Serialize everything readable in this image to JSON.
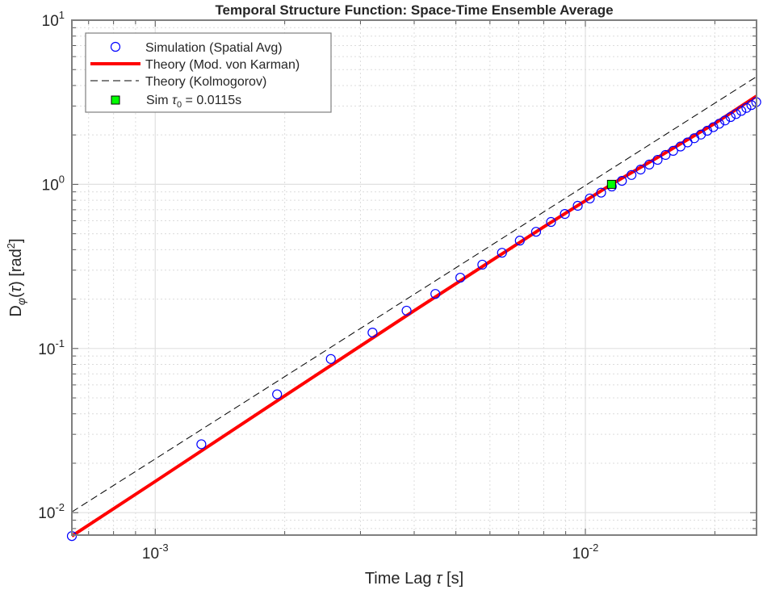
{
  "chart_data": {
    "type": "line",
    "title": "Temporal Structure Function: Space-Time Ensemble Average",
    "xlabel": "Time Lag τ [s]",
    "ylabel": "D_φ(τ) [rad²]",
    "xscale": "log",
    "yscale": "log",
    "xlim": [
      0.00064,
      0.025
    ],
    "ylim": [
      0.0073,
      10
    ],
    "grid": true,
    "minor_grid": true,
    "legend_position": "top-left",
    "x_ticks": [
      {
        "value": 0.001,
        "base": "10",
        "exp": "-3"
      },
      {
        "value": 0.01,
        "base": "10",
        "exp": "-2"
      }
    ],
    "y_ticks": [
      {
        "value": 10,
        "base": "10",
        "exp": "1"
      },
      {
        "value": 1,
        "base": "10",
        "exp": "0"
      },
      {
        "value": 0.1,
        "base": "10",
        "exp": "-1"
      },
      {
        "value": 0.01,
        "base": "10",
        "exp": "-2"
      }
    ],
    "series": [
      {
        "name": "Simulation (Spatial Avg)",
        "style": "markers-circle",
        "color": "#0000ff",
        "x": [
          0.00064,
          0.00128,
          0.00192,
          0.00256,
          0.0032,
          0.00384,
          0.00448,
          0.00512,
          0.00576,
          0.0064,
          0.00704,
          0.00768,
          0.00832,
          0.00896,
          0.0096,
          0.01024,
          0.01088,
          0.01152,
          0.01216,
          0.0128,
          0.01344,
          0.01408,
          0.01472,
          0.01536,
          0.016,
          0.01664,
          0.01728,
          0.01792,
          0.01856,
          0.0192,
          0.01984,
          0.02048,
          0.02112,
          0.02176,
          0.0224,
          0.02304,
          0.02368,
          0.02432,
          0.02496
        ],
        "y": [
          0.0072,
          0.0261,
          0.0526,
          0.0863,
          0.125,
          0.17,
          0.215,
          0.27,
          0.324,
          0.383,
          0.454,
          0.514,
          0.59,
          0.66,
          0.74,
          0.82,
          0.89,
          0.97,
          1.05,
          1.14,
          1.23,
          1.32,
          1.41,
          1.51,
          1.6,
          1.7,
          1.8,
          1.91,
          2.01,
          2.12,
          2.23,
          2.34,
          2.45,
          2.57,
          2.68,
          2.8,
          2.92,
          3.04,
          3.17
        ]
      },
      {
        "name": "Theory (Mod. von Karman)",
        "style": "solid",
        "color": "#ff0000",
        "x": [
          0.00064,
          0.001,
          0.002,
          0.004,
          0.006,
          0.008,
          0.0115,
          0.015,
          0.02,
          0.025
        ],
        "y": [
          0.0072,
          0.0155,
          0.0515,
          0.17,
          0.338,
          0.55,
          1.0,
          1.5,
          2.35,
          3.45
        ]
      },
      {
        "name": "Theory (Kolmogorov)",
        "style": "dashed",
        "color": "#000000",
        "x": [
          0.00064,
          0.025
        ],
        "y": [
          0.0101,
          4.53
        ]
      },
      {
        "name": "Sim τ0 = 0.0115s",
        "legend_main": "Sim ",
        "legend_tau": "τ",
        "legend_sub": "0",
        "legend_rest": " = 0.0115s",
        "style": "marker-square",
        "color": "#00ff00",
        "x": [
          0.0115
        ],
        "y": [
          1.0
        ]
      }
    ]
  }
}
